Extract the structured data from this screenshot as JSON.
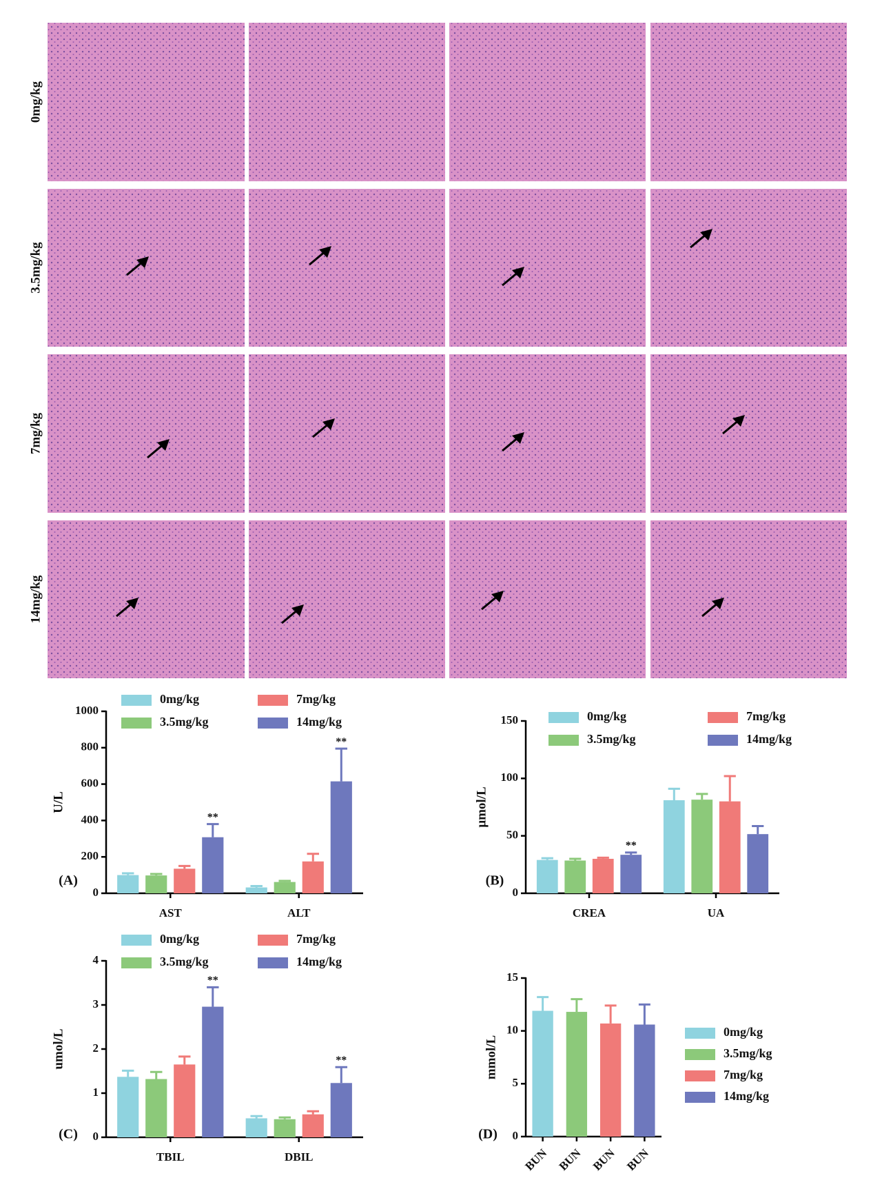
{
  "histology": {
    "row_labels": [
      "0mg/kg",
      "3.5mg/kg",
      "7mg/kg",
      "14mg/kg"
    ]
  },
  "chart_data": [
    {
      "type": "bar",
      "panel_label": "(A)",
      "y_label": "U/L",
      "legend": "top",
      "categories": [
        "AST",
        "ALT"
      ],
      "ylim": [
        0,
        1000
      ],
      "yticks": [
        0,
        200,
        400,
        600,
        800,
        1000
      ],
      "series": [
        {
          "name": "0mg/kg",
          "color": "#8fd3df",
          "values": [
            100,
            32
          ],
          "errors": [
            10,
            8
          ]
        },
        {
          "name": "3.5mg/kg",
          "color": "#8cc97a",
          "values": [
            98,
            62
          ],
          "errors": [
            8,
            6
          ]
        },
        {
          "name": "7mg/kg",
          "color": "#f07a78",
          "values": [
            135,
            175
          ],
          "errors": [
            15,
            42
          ]
        },
        {
          "name": "14mg/kg",
          "color": "#6e78bd",
          "values": [
            308,
            615
          ],
          "errors": [
            72,
            180
          ],
          "labels": [
            "**",
            "**"
          ]
        }
      ]
    },
    {
      "type": "bar",
      "panel_label": "(B)",
      "y_label": "μmol/L",
      "legend": "top",
      "categories": [
        "CREA",
        "UA"
      ],
      "ylim": [
        0,
        150
      ],
      "yticks": [
        0,
        50,
        100,
        150
      ],
      "series": [
        {
          "name": "0mg/kg",
          "color": "#8fd3df",
          "values": [
            29,
            81
          ],
          "errors": [
            1.5,
            10
          ]
        },
        {
          "name": "3.5mg/kg",
          "color": "#8cc97a",
          "values": [
            28.5,
            81.5
          ],
          "errors": [
            1.5,
            5
          ]
        },
        {
          "name": "7mg/kg",
          "color": "#f07a78",
          "values": [
            30,
            80
          ],
          "errors": [
            1,
            22
          ]
        },
        {
          "name": "14mg/kg",
          "color": "#6e78bd",
          "values": [
            33.5,
            51.5
          ],
          "errors": [
            2,
            7
          ],
          "labels": [
            "**",
            null
          ]
        }
      ]
    },
    {
      "type": "bar",
      "panel_label": "(C)",
      "y_label": "umol/L",
      "legend": "top",
      "categories": [
        "TBIL",
        "DBIL"
      ],
      "ylim": [
        0,
        4
      ],
      "yticks": [
        0,
        1,
        2,
        3,
        4
      ],
      "series": [
        {
          "name": "0mg/kg",
          "color": "#8fd3df",
          "values": [
            1.37,
            0.43
          ],
          "errors": [
            0.14,
            0.05
          ]
        },
        {
          "name": "3.5mg/kg",
          "color": "#8cc97a",
          "values": [
            1.32,
            0.41
          ],
          "errors": [
            0.16,
            0.04
          ]
        },
        {
          "name": "7mg/kg",
          "color": "#f07a78",
          "values": [
            1.65,
            0.52
          ],
          "errors": [
            0.18,
            0.07
          ]
        },
        {
          "name": "14mg/kg",
          "color": "#6e78bd",
          "values": [
            2.96,
            1.23
          ],
          "errors": [
            0.44,
            0.36
          ],
          "labels": [
            "**",
            "**"
          ]
        }
      ]
    },
    {
      "type": "bar",
      "panel_label": "(D)",
      "y_label": "mmol/L",
      "legend": "right",
      "categories": [
        "BUN",
        "BUN",
        "BUN",
        "BUN"
      ],
      "ylim": [
        0,
        15
      ],
      "yticks": [
        0,
        5,
        10,
        15
      ],
      "series": [
        {
          "name": "0mg/kg",
          "color": "#8fd3df",
          "values": [
            11.9,
            null,
            null,
            null
          ],
          "errors": [
            1.3,
            null,
            null,
            null
          ]
        },
        {
          "name": "3.5mg/kg",
          "color": "#8cc97a",
          "values": [
            null,
            11.8,
            null,
            null
          ],
          "errors": [
            null,
            1.2,
            null,
            null
          ]
        },
        {
          "name": "7mg/kg",
          "color": "#f07a78",
          "values": [
            null,
            null,
            10.7,
            null
          ],
          "errors": [
            null,
            null,
            1.7,
            null
          ]
        },
        {
          "name": "14mg/kg",
          "color": "#6e78bd",
          "values": [
            null,
            null,
            null,
            10.6
          ],
          "errors": [
            null,
            null,
            null,
            1.9
          ]
        }
      ]
    }
  ]
}
